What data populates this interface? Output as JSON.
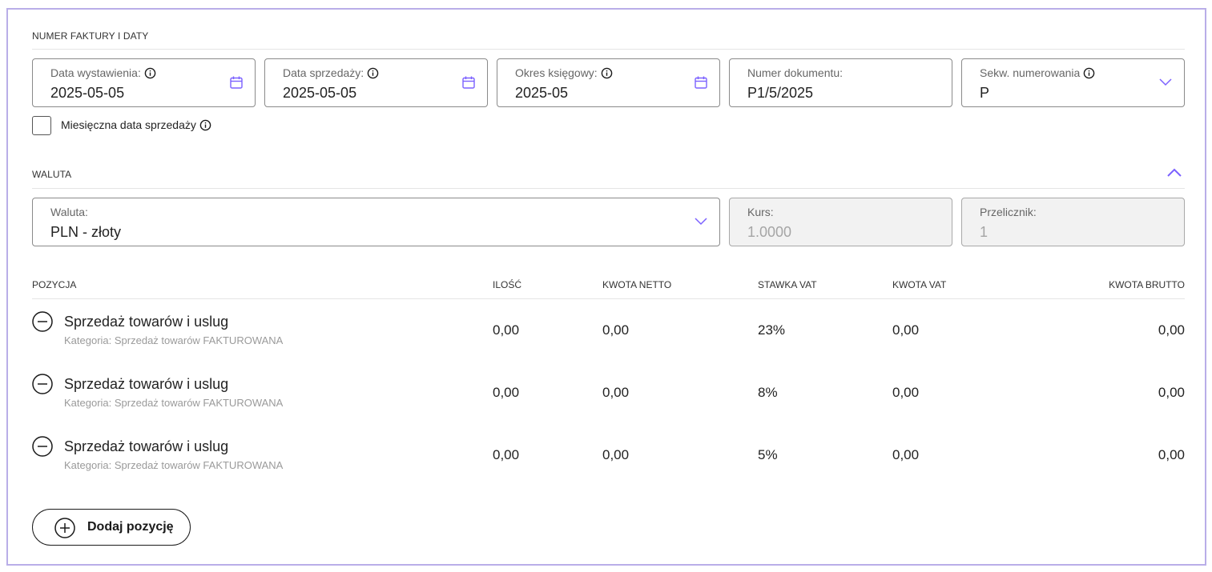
{
  "sections": {
    "invoice_dates_title": "NUMER FAKTURY I DATY",
    "currency_title": "WALUTA"
  },
  "fields": {
    "issue_date": {
      "label": "Data wystawienia:",
      "value": "2025-05-05"
    },
    "sale_date": {
      "label": "Data sprzedaży:",
      "value": "2025-05-05"
    },
    "accounting_period": {
      "label": "Okres księgowy:",
      "value": "2025-05"
    },
    "document_number": {
      "label": "Numer dokumentu:",
      "value": "P1/5/2025"
    },
    "numbering_sequence": {
      "label": "Sekw. numerowania",
      "value": "P"
    },
    "currency": {
      "label": "Waluta:",
      "value": "PLN - złoty"
    },
    "rate": {
      "label": "Kurs:",
      "value": "1.0000"
    },
    "converter": {
      "label": "Przelicznik:",
      "value": "1"
    }
  },
  "monthly_sale_date": {
    "label": "Miesięczna data sprzedaży",
    "checked": false
  },
  "table": {
    "headers": {
      "position": "POZYCJA",
      "quantity": "ILOŚĆ",
      "net": "KWOTA NETTO",
      "vat_rate": "STAWKA VAT",
      "vat": "KWOTA VAT",
      "gross": "KWOTA BRUTTO"
    },
    "rows": [
      {
        "title": "Sprzedaż towarów i uslug",
        "category": "Kategoria: Sprzedaż towarów FAKTUROWANA",
        "quantity": "0,00",
        "net": "0,00",
        "vat_rate": "23%",
        "vat": "0,00",
        "gross": "0,00"
      },
      {
        "title": "Sprzedaż towarów i uslug",
        "category": "Kategoria: Sprzedaż towarów FAKTUROWANA",
        "quantity": "0,00",
        "net": "0,00",
        "vat_rate": "8%",
        "vat": "0,00",
        "gross": "0,00"
      },
      {
        "title": "Sprzedaż towarów i uslug",
        "category": "Kategoria: Sprzedaż towarów FAKTUROWANA",
        "quantity": "0,00",
        "net": "0,00",
        "vat_rate": "5%",
        "vat": "0,00",
        "gross": "0,00"
      }
    ]
  },
  "add_button": {
    "label": "Dodaj pozycję"
  },
  "icons": {
    "info": "info-icon",
    "calendar": "calendar-icon",
    "chevron_down": "chevron-down-icon",
    "chevron_up": "chevron-up-icon",
    "remove": "minus-circle-icon",
    "add": "plus-circle-icon"
  },
  "colors": {
    "accent": "#7b61ff",
    "frame": "#b9aee8"
  }
}
